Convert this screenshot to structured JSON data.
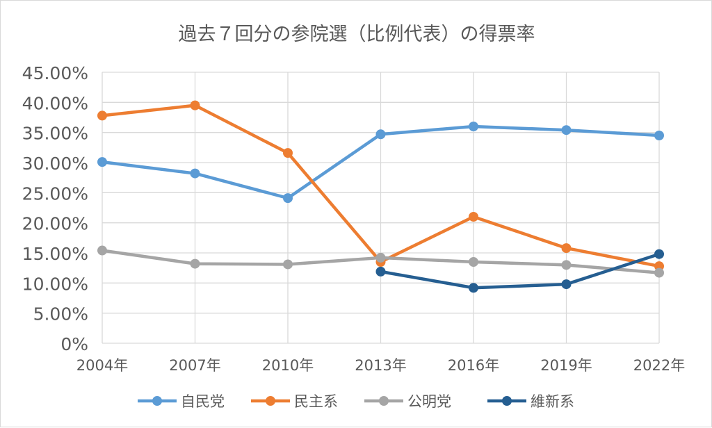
{
  "chart_data": {
    "type": "line",
    "title": "過去７回分の参院選（比例代表）の得票率",
    "xlabel": "",
    "ylabel": "",
    "categories": [
      "2004年",
      "2007年",
      "2010年",
      "2013年",
      "2016年",
      "2019年",
      "2022年"
    ],
    "ylim": [
      0,
      45
    ],
    "yticks": [
      "0%",
      "5.00%",
      "10.00%",
      "15.00%",
      "20.00%",
      "25.00%",
      "30.00%",
      "35.00%",
      "40.00%",
      "45.00%"
    ],
    "grid": true,
    "legend": "bottom",
    "series": [
      {
        "name": "自民党",
        "color": "#5b9bd5",
        "values": [
          30.1,
          28.2,
          24.1,
          34.7,
          36.0,
          35.4,
          34.5
        ]
      },
      {
        "name": "民主系",
        "color": "#ed7d31",
        "values": [
          37.8,
          39.5,
          31.6,
          13.5,
          21.0,
          15.8,
          12.8
        ]
      },
      {
        "name": "公明党",
        "color": "#a5a5a5",
        "values": [
          15.4,
          13.2,
          13.1,
          14.2,
          13.5,
          13.0,
          11.7
        ]
      },
      {
        "name": "維新系",
        "color": "#255e91",
        "values": [
          null,
          null,
          null,
          11.9,
          9.2,
          9.8,
          14.8
        ]
      }
    ]
  }
}
